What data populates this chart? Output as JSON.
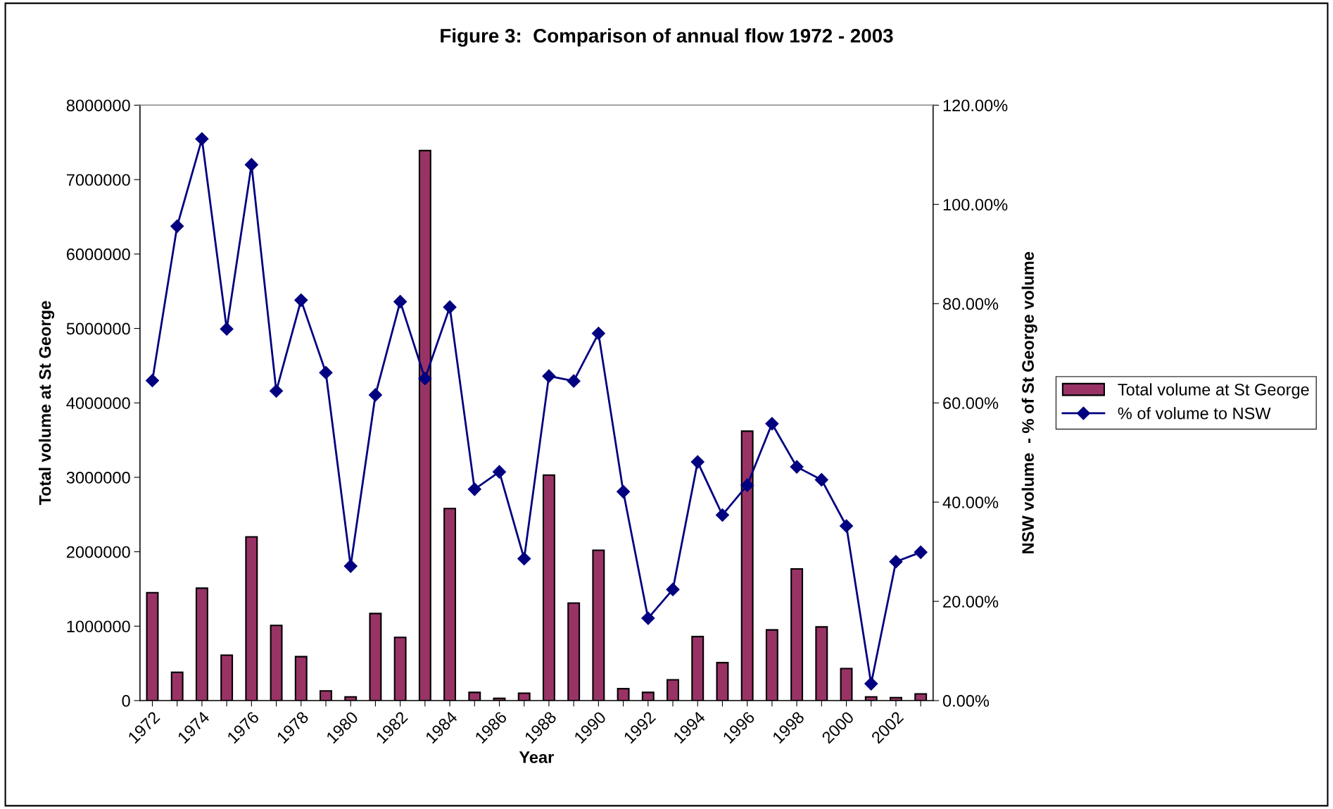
{
  "chart_data": {
    "type": "bar",
    "title": "Figure 3:  Comparison of annual flow 1972 - 2003",
    "xlabel": "Year",
    "ylabel": "Total volume at St George",
    "y2label": "NSW volume  - % of St George volume",
    "categories": [
      "1972",
      null,
      "1974",
      null,
      "1976",
      null,
      "1978",
      null,
      "1980",
      null,
      "1982",
      null,
      "1984",
      null,
      "1986",
      null,
      "1988",
      null,
      "1990",
      null,
      "1992",
      null,
      "1994",
      null,
      "1996",
      null,
      "1998",
      null,
      "2000",
      null,
      "2002",
      null
    ],
    "series": [
      {
        "name": "Total volume at St George",
        "color": "#993366",
        "values": [
          1450000,
          380000,
          1510000,
          610000,
          2200000,
          1010000,
          590000,
          130000,
          50000,
          1170000,
          850000,
          7390000,
          2580000,
          110000,
          30000,
          100000,
          3030000,
          1310000,
          2020000,
          160000,
          110000,
          280000,
          860000,
          510000,
          3620000,
          950000,
          1770000,
          990000,
          430000,
          50000,
          40000,
          90000
        ]
      },
      {
        "name": "% of volume to NSW",
        "type": "line",
        "axis": "y2",
        "color": "#000080",
        "marker": "diamond",
        "line_style": "solid",
        "values": [
          64.5,
          95.6,
          113.2,
          74.9,
          108.0,
          62.4,
          80.7,
          66.1,
          27.1,
          61.6,
          80.4,
          64.9,
          79.3,
          42.6,
          46.1,
          28.6,
          65.4,
          64.4,
          74.0,
          42.1,
          16.6,
          22.4,
          48.1,
          37.4,
          43.4,
          55.8,
          47.1,
          44.5,
          35.2,
          3.4,
          28.0,
          29.9
        ]
      }
    ],
    "ylim": [
      0,
      8000000
    ],
    "yticks": [
      0,
      1000000,
      2000000,
      3000000,
      4000000,
      5000000,
      6000000,
      7000000,
      8000000
    ],
    "y2lim": [
      0,
      120
    ],
    "y2ticks": [
      {
        "value": 0,
        "label": "0.00%"
      },
      {
        "value": 20,
        "label": "20.00%"
      },
      {
        "value": 40,
        "label": "40.00%"
      },
      {
        "value": 60,
        "label": "60.00%"
      },
      {
        "value": 80,
        "label": "80.00%"
      },
      {
        "value": 100,
        "label": "100.00%"
      },
      {
        "value": 120,
        "label": "120.00%"
      }
    ],
    "grid": false,
    "legend": "right"
  }
}
